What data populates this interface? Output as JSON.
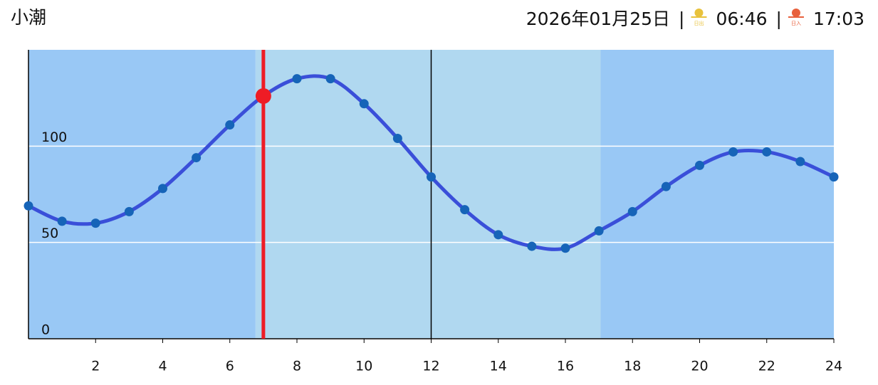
{
  "chart_data": {
    "type": "line",
    "title": "小潮",
    "date": "2026年01月25日",
    "separator": "|",
    "sunrise_icon": "日出",
    "sunrise": "06:46",
    "sunset_icon": "日入",
    "sunset": "17:03",
    "x": [
      0,
      1,
      2,
      3,
      4,
      5,
      6,
      7,
      8,
      9,
      10,
      11,
      12,
      13,
      14,
      15,
      16,
      17,
      18,
      19,
      20,
      21,
      22,
      23,
      24
    ],
    "series": [
      {
        "color": "#3a4fd9",
        "marker_color": "#1664b8",
        "values": [
          69,
          61,
          60,
          66,
          78,
          94,
          111,
          126,
          135,
          135,
          122,
          104,
          84,
          67,
          54,
          48,
          47,
          56,
          66,
          79,
          90,
          97,
          97,
          92,
          84
        ]
      }
    ],
    "xlim": [
      0,
      24
    ],
    "xticks": [
      2,
      4,
      6,
      8,
      10,
      12,
      14,
      16,
      18,
      20,
      22,
      24
    ],
    "ylim": [
      0,
      150
    ],
    "yticks": [
      0,
      50,
      100
    ],
    "grid": true,
    "night_color": "#99c8f5",
    "day_color": "#b0d8f0",
    "midday_line_x": 12,
    "current_time_x": 7,
    "current_time_color": "#ee1c25"
  }
}
